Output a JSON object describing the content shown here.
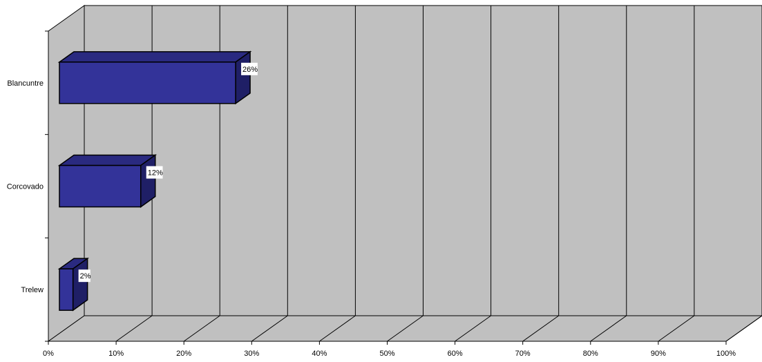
{
  "chart_data": {
    "type": "bar",
    "orientation": "horizontal",
    "three_d": true,
    "categories": [
      "Blancuntre",
      "Corcovado",
      "Trelew"
    ],
    "values": [
      26,
      12,
      2
    ],
    "data_labels": [
      "26%",
      "12%",
      "2%"
    ],
    "x_ticks": [
      "0%",
      "10%",
      "20%",
      "30%",
      "40%",
      "50%",
      "60%",
      "70%",
      "80%",
      "90%",
      "100%"
    ],
    "xlim": [
      0,
      100
    ],
    "x_unit": "%",
    "title": "",
    "xlabel": "",
    "ylabel": "",
    "grid": true,
    "legend": "none"
  },
  "colors": {
    "wall": "#c0c0c0",
    "bar_front": "#333399",
    "bar_top": "#2a2a80",
    "bar_side": "#1f1f66",
    "line": "#000000",
    "label_bg": "#ffffff"
  }
}
